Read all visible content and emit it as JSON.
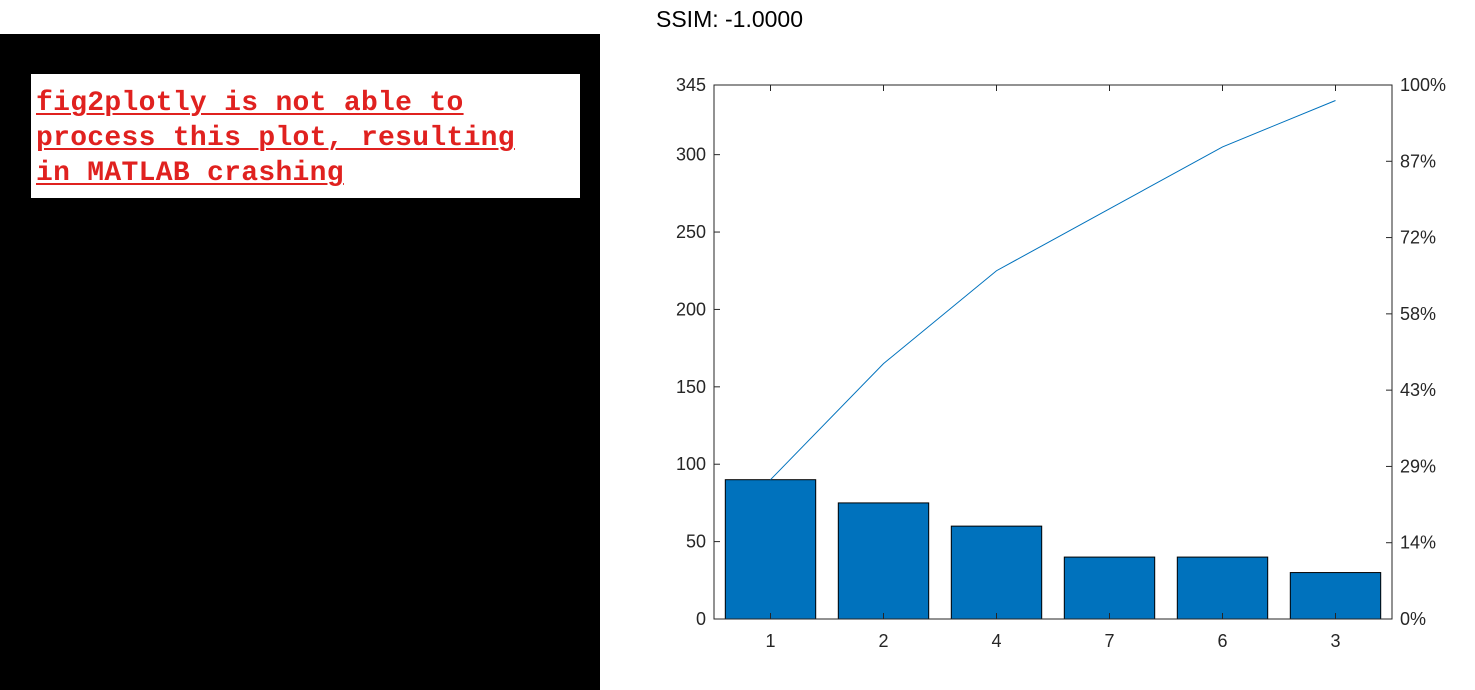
{
  "left_panel": {
    "message": "fig2plotly is not able to\nprocess this plot, resulting\nin MATLAB crashing",
    "background": "#000000",
    "text_color": "#e0211f"
  },
  "title": "SSIM: -1.0000",
  "chart_data": {
    "type": "bar",
    "subtype": "pareto",
    "categories": [
      "1",
      "2",
      "4",
      "7",
      "6",
      "3"
    ],
    "values": [
      90,
      75,
      60,
      40,
      40,
      30
    ],
    "cumulative": [
      90,
      165,
      225,
      265,
      305,
      335
    ],
    "ylim": [
      0,
      345
    ],
    "yticks": [
      0,
      50,
      100,
      150,
      200,
      250,
      300,
      345
    ],
    "y2_ticks": [
      "0%",
      "14%",
      "29%",
      "43%",
      "58%",
      "72%",
      "87%",
      "100%"
    ],
    "bar_color": "#0072bd",
    "line_color": "#0072bd",
    "grid": false
  }
}
